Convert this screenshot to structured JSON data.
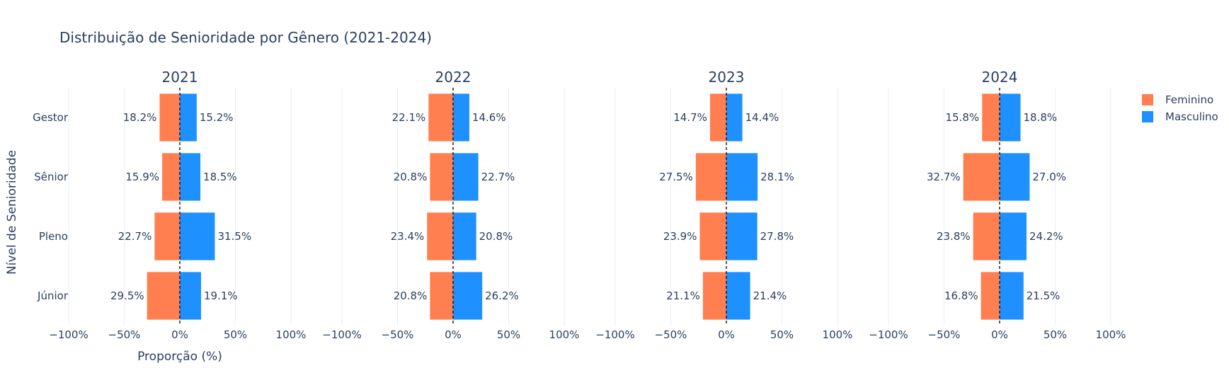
{
  "chart_data": {
    "type": "bar",
    "orientation": "horizontal",
    "title": "Distribuição de Senioridade por Gênero (2021-2024)",
    "xlabel": "Proporção (%)",
    "ylabel": "Nível de Senioridade",
    "xlim": [
      -100,
      100
    ],
    "xticks": [
      "−100%",
      "−50%",
      "0%",
      "50%",
      "100%"
    ],
    "xtick_values": [
      -100,
      -50,
      0,
      50,
      100
    ],
    "categories": [
      "Gestor",
      "Sênior",
      "Pleno",
      "Júnior"
    ],
    "grid": true,
    "legend_position": "top-right",
    "legend": [
      {
        "name": "Feminino",
        "color": "#FF7F50"
      },
      {
        "name": "Masculino",
        "color": "#1E90FF"
      }
    ],
    "panels": [
      {
        "title": "2021",
        "series": [
          {
            "name": "Feminino",
            "values": [
              -18.2,
              -15.9,
              -22.7,
              -29.5
            ],
            "labels": [
              "18.2%",
              "15.9%",
              "22.7%",
              "29.5%"
            ]
          },
          {
            "name": "Masculino",
            "values": [
              15.2,
              18.5,
              31.5,
              19.1
            ],
            "labels": [
              "15.2%",
              "18.5%",
              "31.5%",
              "19.1%"
            ]
          }
        ]
      },
      {
        "title": "2022",
        "series": [
          {
            "name": "Feminino",
            "values": [
              -22.1,
              -20.8,
              -23.4,
              -20.8
            ],
            "labels": [
              "22.1%",
              "20.8%",
              "23.4%",
              "20.8%"
            ]
          },
          {
            "name": "Masculino",
            "values": [
              14.6,
              22.7,
              20.8,
              26.2
            ],
            "labels": [
              "14.6%",
              "22.7%",
              "20.8%",
              "26.2%"
            ]
          }
        ]
      },
      {
        "title": "2023",
        "series": [
          {
            "name": "Feminino",
            "values": [
              -14.7,
              -27.5,
              -23.9,
              -21.1
            ],
            "labels": [
              "14.7%",
              "27.5%",
              "23.9%",
              "21.1%"
            ]
          },
          {
            "name": "Masculino",
            "values": [
              14.4,
              28.1,
              27.8,
              21.4
            ],
            "labels": [
              "14.4%",
              "28.1%",
              "27.8%",
              "21.4%"
            ]
          }
        ]
      },
      {
        "title": "2024",
        "series": [
          {
            "name": "Feminino",
            "values": [
              -15.8,
              -32.7,
              -23.8,
              -16.8
            ],
            "labels": [
              "15.8%",
              "32.7%",
              "23.8%",
              "16.8%"
            ]
          },
          {
            "name": "Masculino",
            "values": [
              18.8,
              27.0,
              24.2,
              21.5
            ],
            "labels": [
              "18.8%",
              "27.0%",
              "24.2%",
              "21.5%"
            ]
          }
        ]
      }
    ]
  }
}
